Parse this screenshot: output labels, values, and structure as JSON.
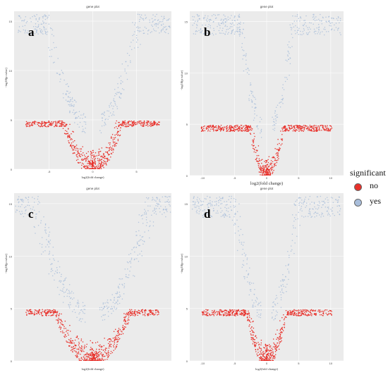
{
  "colors": {
    "no": "#e8302a",
    "yes": "#a9bedb",
    "panel_bg": "#ebebeb",
    "grid": "#ffffff"
  },
  "legend": {
    "title": "significant",
    "items": [
      {
        "label": "no",
        "color": "#e8302a"
      },
      {
        "label": "yes",
        "color": "#a9bedb"
      }
    ]
  },
  "chart_data": [
    {
      "type": "scatter",
      "panel_letter": "a",
      "title": "gene plot",
      "xlabel": "log2(fold change)",
      "ylabel": "-log10(p value)",
      "xlim": [
        -9,
        9
      ],
      "ylim": [
        0,
        16
      ],
      "xticks": [
        -5,
        0,
        5
      ],
      "yticks": [
        0,
        5,
        10,
        15
      ],
      "xtick_labels": [
        "-5",
        "0",
        "5"
      ],
      "ytick_labels": [
        "0",
        "5",
        "10",
        "15"
      ],
      "series": [
        {
          "name": "no",
          "description": "dense V-shaped cloud around fold change 0, -log10(p) mostly below ~4"
        },
        {
          "name": "yes",
          "description": "points on the outer arms of the V at higher -log10(p)"
        }
      ],
      "shape": {
        "spread": 0.045,
        "count_red": 720,
        "count_blue": 380,
        "seed": 11
      }
    },
    {
      "type": "scatter",
      "panel_letter": "b",
      "title": "gene plot",
      "xlabel": "log2(fold change)",
      "ylabel": "-log10(p value)",
      "xlim": [
        -12,
        12
      ],
      "ylim": [
        0,
        16
      ],
      "xticks": [
        -10,
        -5,
        0,
        5,
        10
      ],
      "yticks": [
        0,
        5,
        10,
        15
      ],
      "xtick_labels": [
        "-10",
        "-5",
        "0",
        "5",
        "10"
      ],
      "ytick_labels": [
        "0",
        "5",
        "10",
        "15"
      ],
      "series": [
        {
          "name": "no",
          "description": "dense V-shaped cloud around fold change 0"
        },
        {
          "name": "yes",
          "description": "points on the outer arms of the V at higher -log10(p)"
        }
      ],
      "shape": {
        "spread": 0.07,
        "count_red": 720,
        "count_blue": 420,
        "seed": 23
      }
    },
    {
      "type": "scatter",
      "panel_letter": "c",
      "title": "gene plot",
      "xlabel": "log2(fold change)",
      "ylabel": "-log10(p value)",
      "xlim": [
        -9,
        9
      ],
      "ylim": [
        0,
        16
      ],
      "xticks": [],
      "yticks": [
        0,
        5,
        10,
        15
      ],
      "xtick_labels": [],
      "ytick_labels": [
        "0",
        "5",
        "10",
        "15"
      ],
      "series": [
        {
          "name": "no",
          "description": "narrow V-shaped cloud around fold change 0"
        },
        {
          "name": "yes",
          "description": "points on the upper arms of the V reaching the top of the plot"
        }
      ],
      "shape": {
        "spread": 0.028,
        "count_red": 720,
        "count_blue": 420,
        "seed": 37
      }
    },
    {
      "type": "scatter",
      "panel_letter": "d",
      "title": "gene plot",
      "xlabel": "log2(fold change)",
      "ylabel": "-log10(p value)",
      "xlim": [
        -12,
        12
      ],
      "ylim": [
        0,
        16
      ],
      "xticks": [
        -10,
        -5,
        0,
        5,
        10
      ],
      "yticks": [
        0,
        5,
        10,
        15
      ],
      "xtick_labels": [
        "-10",
        "-5",
        "0",
        "5",
        "10"
      ],
      "ytick_labels": [
        "0",
        "5",
        "10",
        "15"
      ],
      "series": [
        {
          "name": "no",
          "description": "dense V-shaped cloud around fold change 0"
        },
        {
          "name": "yes",
          "description": "points on the outer arms of the V at higher -log10(p)"
        }
      ],
      "shape": {
        "spread": 0.05,
        "count_red": 720,
        "count_blue": 420,
        "seed": 53
      }
    }
  ]
}
